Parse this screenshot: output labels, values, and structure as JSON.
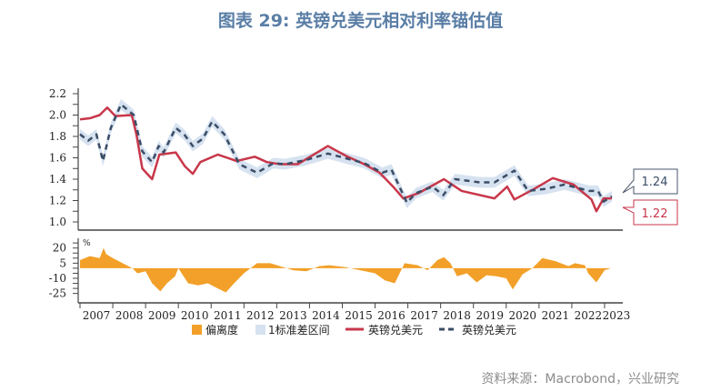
{
  "title": "图表 29: 英镑兑美元相对利率锚估值",
  "source": "资料来源：Macrobond，兴业研究",
  "colors": {
    "title": "#5a7ea6",
    "spot": "#c8374a",
    "fair": "#3b4d66",
    "band": "#d6e2f0",
    "deviation": "#f2a029",
    "axis": "#444444"
  },
  "chart_data": [
    {
      "type": "line",
      "panel": "top",
      "ylim": [
        1.0,
        2.2
      ],
      "yticks": [
        "1.0",
        "1.2",
        "1.4",
        "1.6",
        "1.8",
        "2.0",
        "2.2"
      ],
      "xlim": [
        2007,
        2023.6
      ],
      "band_halfwidth": 0.05,
      "series": [
        {
          "name": "英镑兑美元",
          "style": "solid",
          "color": "#c8374a",
          "x": [
            2007.0,
            2007.3,
            2007.6,
            2007.83,
            2008.08,
            2008.58,
            2008.72,
            2008.9,
            2009.2,
            2009.42,
            2009.92,
            2010.2,
            2010.44,
            2010.67,
            2011.2,
            2011.78,
            2012.33,
            2012.7,
            2013.1,
            2013.64,
            2014.56,
            2015.1,
            2015.67,
            2016.14,
            2016.58,
            2016.86,
            2017.33,
            2018.1,
            2018.64,
            2019.64,
            2020.03,
            2020.25,
            2020.86,
            2021.42,
            2022.05,
            2022.6,
            2022.75,
            2022.97,
            2023.22
          ],
          "y": [
            1.96,
            1.97,
            2.0,
            2.07,
            1.99,
            2.0,
            1.82,
            1.5,
            1.4,
            1.63,
            1.65,
            1.52,
            1.45,
            1.56,
            1.63,
            1.57,
            1.61,
            1.56,
            1.54,
            1.54,
            1.71,
            1.62,
            1.54,
            1.46,
            1.32,
            1.22,
            1.27,
            1.4,
            1.29,
            1.22,
            1.33,
            1.21,
            1.31,
            1.41,
            1.35,
            1.21,
            1.1,
            1.22,
            1.22
          ]
        },
        {
          "name": "英镑兑美元",
          "style": "dashed",
          "color": "#3b4d66",
          "x": [
            2007.0,
            2007.25,
            2007.5,
            2007.7,
            2007.94,
            2008.25,
            2008.64,
            2008.9,
            2009.2,
            2009.4,
            2009.55,
            2009.92,
            2010.2,
            2010.44,
            2010.75,
            2011.03,
            2011.4,
            2011.86,
            2012.4,
            2012.9,
            2013.25,
            2013.9,
            2014.56,
            2015.67,
            2016.22,
            2016.5,
            2016.97,
            2017.25,
            2017.75,
            2018.08,
            2018.44,
            2019.2,
            2019.64,
            2020.25,
            2020.67,
            2021.22,
            2021.78,
            2022.53,
            2022.8,
            2022.97,
            2023.22
          ],
          "y": [
            1.82,
            1.76,
            1.82,
            1.57,
            1.88,
            2.1,
            2.0,
            1.66,
            1.56,
            1.71,
            1.65,
            1.88,
            1.81,
            1.71,
            1.78,
            1.94,
            1.82,
            1.54,
            1.46,
            1.55,
            1.54,
            1.58,
            1.64,
            1.55,
            1.46,
            1.49,
            1.18,
            1.27,
            1.33,
            1.25,
            1.4,
            1.37,
            1.37,
            1.48,
            1.29,
            1.31,
            1.35,
            1.29,
            1.29,
            1.19,
            1.24
          ]
        }
      ],
      "callouts": [
        {
          "label": "1.24",
          "series": "dashed"
        },
        {
          "label": "1.22",
          "series": "solid"
        }
      ]
    },
    {
      "type": "area",
      "panel": "bottom",
      "ylabel": "%",
      "yticks": [
        "20",
        "5",
        "-10",
        "-25"
      ],
      "ylim": [
        -30,
        25
      ],
      "series": [
        {
          "name": "偏离度",
          "color": "#f2a029",
          "x": [
            2007.0,
            2007.3,
            2007.6,
            2007.72,
            2007.8,
            2008.0,
            2008.3,
            2008.6,
            2008.75,
            2009.0,
            2009.2,
            2009.45,
            2009.65,
            2009.9,
            2010.0,
            2010.1,
            2010.3,
            2010.6,
            2010.9,
            2011.2,
            2011.45,
            2011.7,
            2012.0,
            2012.2,
            2012.4,
            2012.8,
            2013.1,
            2013.5,
            2013.9,
            2014.3,
            2014.6,
            2015.1,
            2015.7,
            2016.0,
            2016.3,
            2016.6,
            2016.9,
            2017.3,
            2017.6,
            2017.9,
            2018.1,
            2018.3,
            2018.5,
            2018.8,
            2019.1,
            2019.4,
            2019.7,
            2020.0,
            2020.2,
            2020.5,
            2020.8,
            2021.1,
            2021.5,
            2021.9,
            2022.1,
            2022.4,
            2022.5,
            2022.75,
            2023.0,
            2023.2
          ],
          "y": [
            8,
            12,
            10,
            20,
            14,
            10,
            5,
            0,
            -5,
            -3,
            -15,
            -23,
            -15,
            -8,
            0,
            -5,
            -15,
            -17,
            -15,
            -20,
            -24,
            -15,
            -5,
            0,
            5,
            5,
            2,
            -2,
            -3,
            2,
            3,
            1,
            -3,
            -5,
            -12,
            -15,
            5,
            3,
            -2,
            8,
            11,
            5,
            -8,
            -5,
            -14,
            -7,
            -8,
            -10,
            -21,
            -6,
            0,
            10,
            7,
            2,
            5,
            3,
            -5,
            -14,
            -2,
            0
          ]
        }
      ]
    }
  ],
  "x_axis": {
    "tick_labels": [
      "2007",
      "2008",
      "2009",
      "2010",
      "2011",
      "2012",
      "2013",
      "2014",
      "2015",
      "2016",
      "2017",
      "2018",
      "2019",
      "2020",
      "2021",
      "2022",
      "2023"
    ]
  },
  "legend": [
    {
      "label": "偏离度",
      "kind": "square",
      "color": "#f2a029"
    },
    {
      "label": "1标准差区间",
      "kind": "square",
      "color": "#d6e2f0"
    },
    {
      "label": "英镑兑美元",
      "kind": "solid-line",
      "color": "#c8374a"
    },
    {
      "label": "英镑兑美元",
      "kind": "dashed-line",
      "color": "#3b4d66"
    }
  ]
}
